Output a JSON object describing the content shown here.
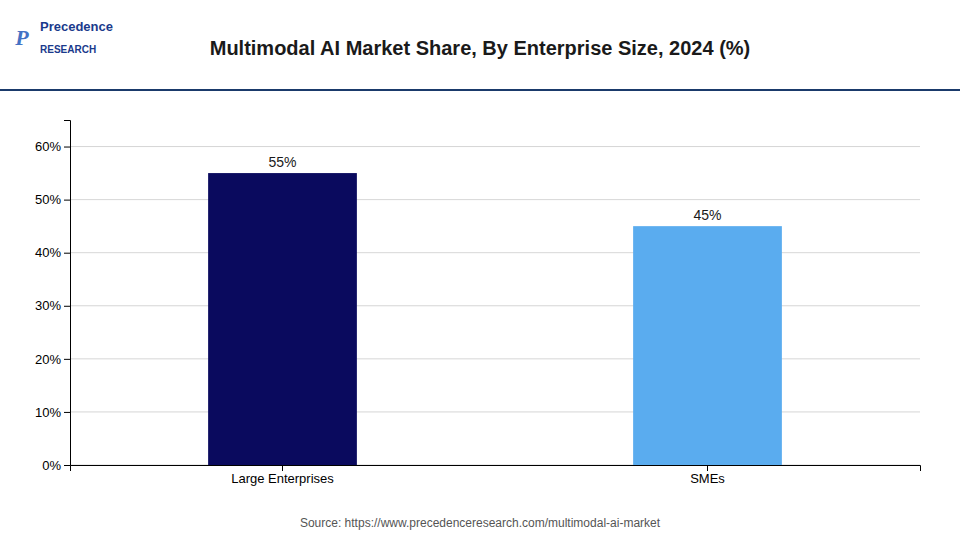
{
  "chart_data": {
    "type": "bar",
    "title": "Multimodal AI Market Share, By Enterprise Size, 2024 (%)",
    "categories": [
      "Large Enterprises",
      "SMEs"
    ],
    "values": [
      55,
      45
    ],
    "value_labels": [
      "55%",
      "45%"
    ],
    "colors": [
      "#0a0a5e",
      "#5aacef"
    ],
    "data_labels": true,
    "ylim": [
      0,
      65
    ],
    "yticks": [
      {
        "value": 0,
        "label": "0%"
      },
      {
        "value": 10,
        "label": "10%"
      },
      {
        "value": 20,
        "label": "20%"
      },
      {
        "value": 30,
        "label": "30%"
      },
      {
        "value": 40,
        "label": "40%"
      },
      {
        "value": 50,
        "label": "50%"
      },
      {
        "value": 60,
        "label": "60%"
      }
    ],
    "grid": true,
    "annotations": [
      "P",
      "Precedence",
      "RESEARCH"
    ],
    "source": "Source: https://www.precedenceresearch.com/multimodal-ai-market"
  }
}
